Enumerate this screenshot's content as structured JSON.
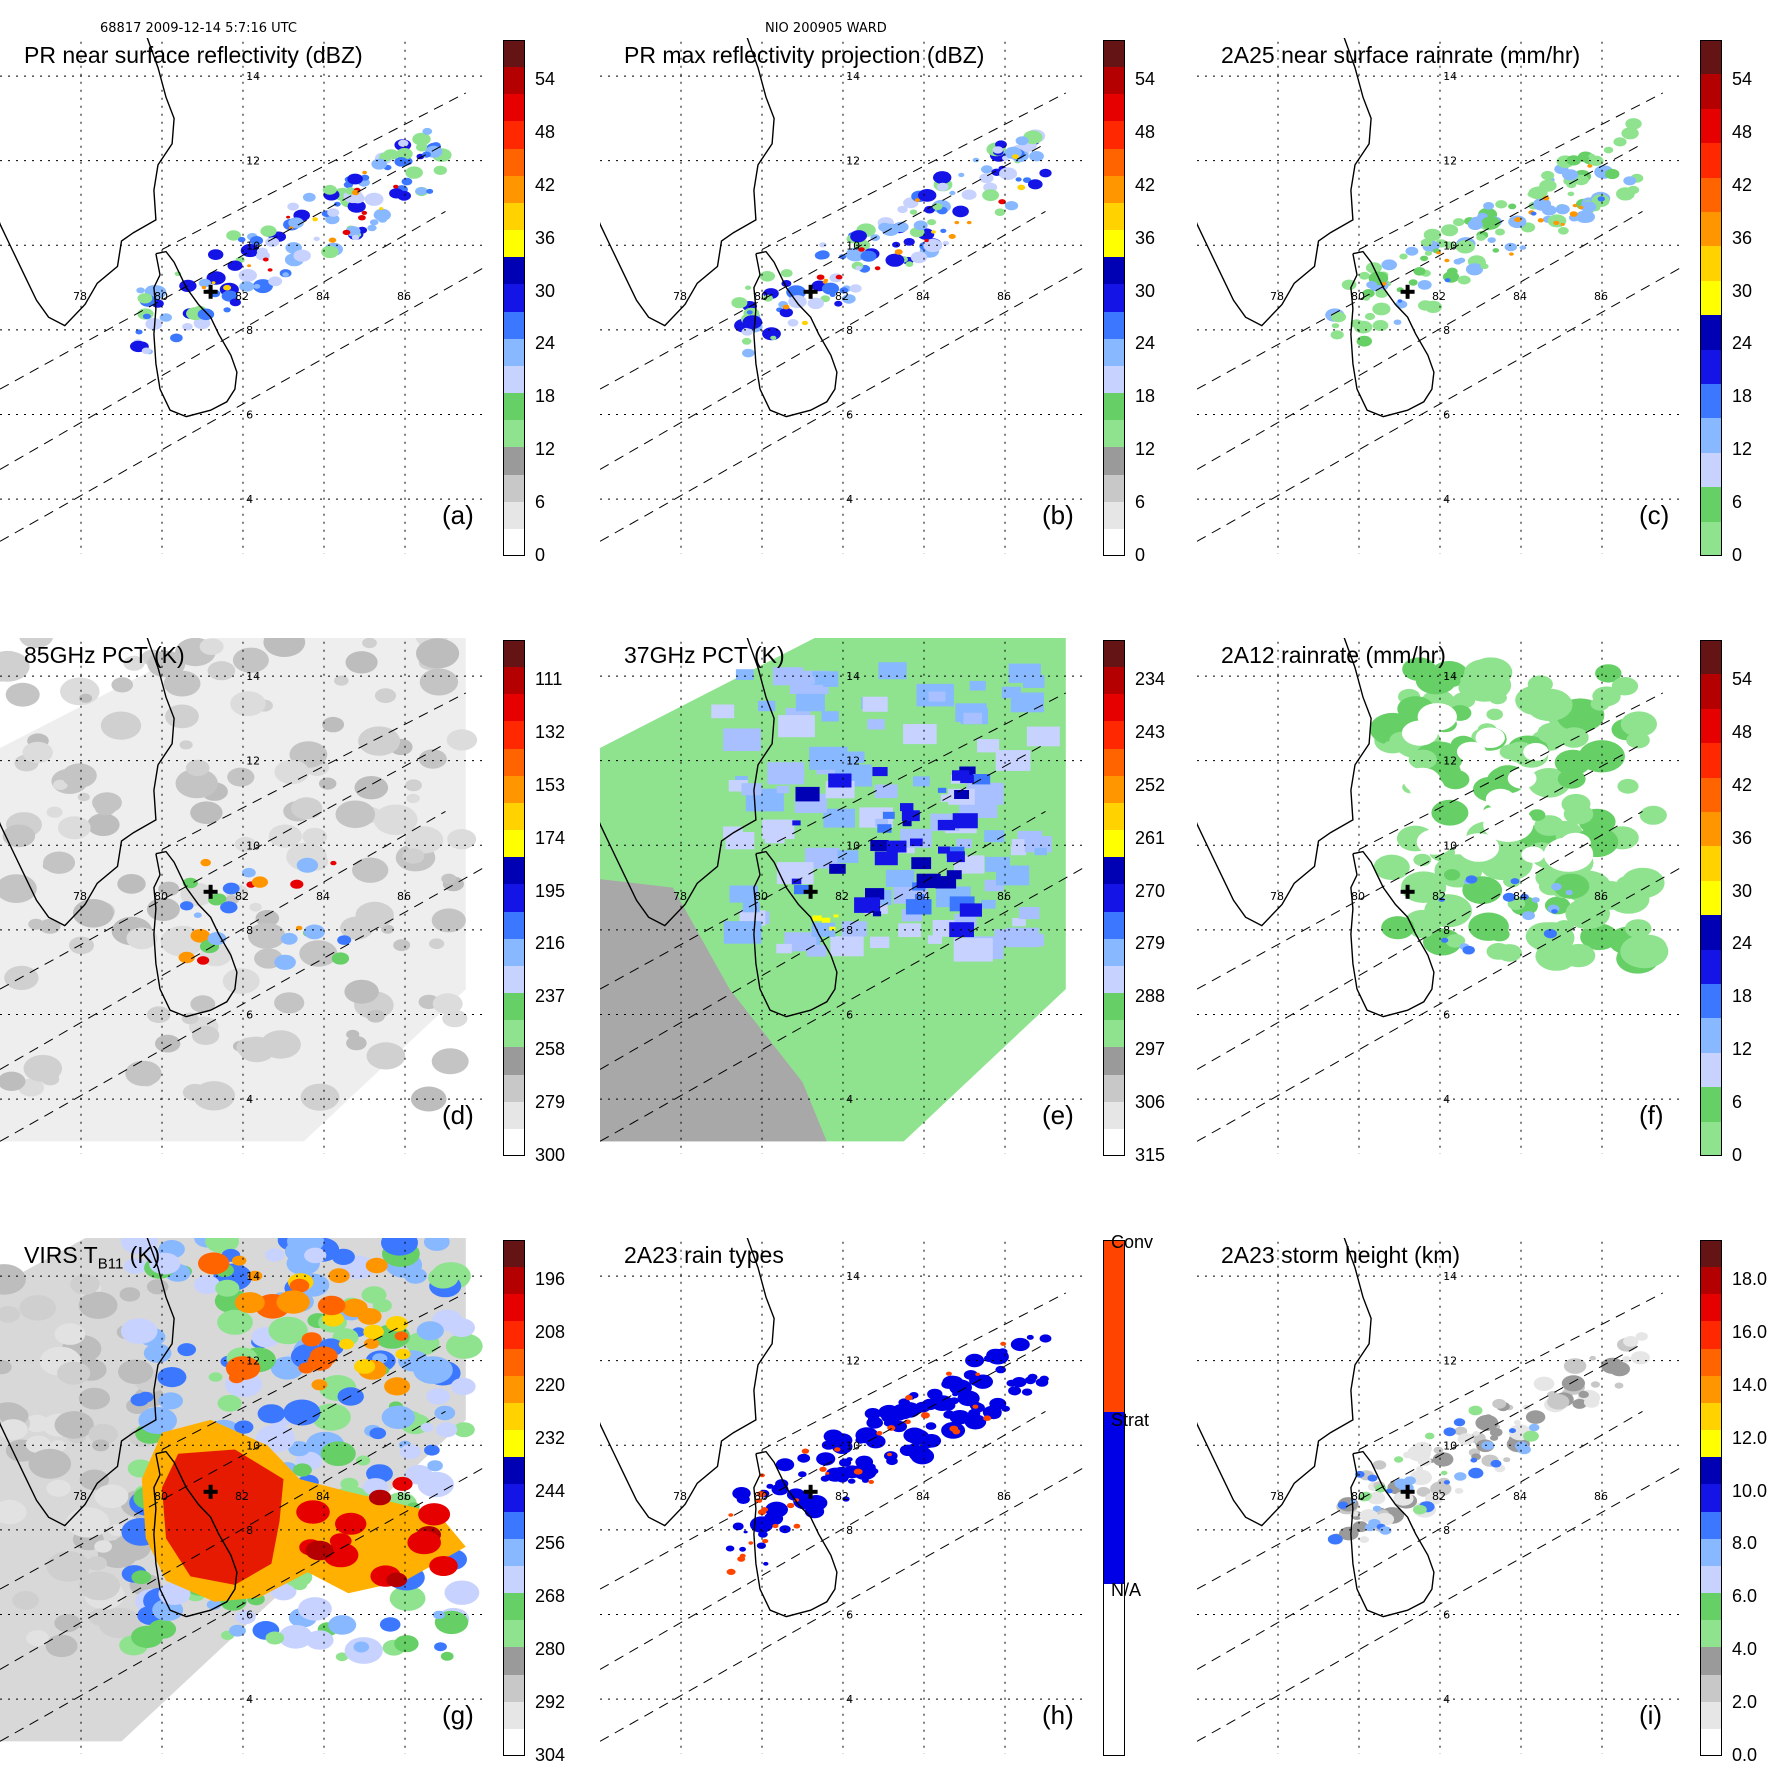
{
  "header": {
    "left": "68817 2009-12-14 5:7:16 UTC",
    "center": "NIO 200905 WARD"
  },
  "grid_labels": {
    "lon": [
      "78",
      "80",
      "82",
      "84",
      "86"
    ],
    "lat": [
      "4",
      "6",
      "8",
      "10",
      "12",
      "14"
    ]
  },
  "panels": [
    {
      "id": "a",
      "title": "PR near surface reflectivity (dBZ)",
      "label": "(a)",
      "scale": "dbz",
      "ticks": [
        "54",
        "48",
        "42",
        "36",
        "30",
        "24",
        "18",
        "12",
        "6",
        "0"
      ]
    },
    {
      "id": "b",
      "title": "PR max reflectivity projection (dBZ)",
      "label": "(b)",
      "scale": "dbz",
      "ticks": [
        "54",
        "48",
        "42",
        "36",
        "30",
        "24",
        "18",
        "12",
        "6",
        "0"
      ]
    },
    {
      "id": "c",
      "title": "2A25 near surface rainrate (mm/hr)",
      "label": "(c)",
      "scale": "rain",
      "ticks": [
        "54",
        "48",
        "42",
        "36",
        "30",
        "24",
        "18",
        "12",
        "6",
        "0"
      ]
    },
    {
      "id": "d",
      "title": "85GHz PCT (K)",
      "label": "(d)",
      "scale": "pct",
      "ticks": [
        "111",
        "132",
        "153",
        "174",
        "195",
        "216",
        "237",
        "258",
        "279",
        "300"
      ]
    },
    {
      "id": "e",
      "title": "37GHz PCT (K)",
      "label": "(e)",
      "scale": "pct",
      "ticks": [
        "234",
        "243",
        "252",
        "261",
        "270",
        "279",
        "288",
        "297",
        "306",
        "315"
      ]
    },
    {
      "id": "f",
      "title": "2A12 rainrate (mm/hr)",
      "label": "(f)",
      "scale": "rain",
      "ticks": [
        "54",
        "48",
        "42",
        "36",
        "30",
        "24",
        "18",
        "12",
        "6",
        "0"
      ]
    },
    {
      "id": "g",
      "title": "VIRS T",
      "title_sub": "B11",
      "title_suffix": " (K)",
      "label": "(g)",
      "scale": "pct",
      "ticks": [
        "196",
        "208",
        "220",
        "232",
        "244",
        "256",
        "268",
        "280",
        "292",
        "304"
      ]
    },
    {
      "id": "h",
      "title": "2A23 rain types",
      "label": "(h)",
      "scale": "type",
      "ticks": [
        "Conv",
        "Strat",
        "N/A"
      ]
    },
    {
      "id": "i",
      "title": "2A23 storm height (km)",
      "label": "(i)",
      "scale": "height",
      "ticks": [
        "18.0",
        "16.0",
        "14.0",
        "12.0",
        "10.0",
        "8.0",
        "6.0",
        "4.0",
        "2.0",
        "0.0"
      ]
    }
  ],
  "colors": {
    "dbz": [
      "#ffffff",
      "#e6e6e6",
      "#c8c8c8",
      "#9a9a9a",
      "#8fe38f",
      "#66d066",
      "#c8d2ff",
      "#88b8ff",
      "#3c78ff",
      "#1414e6",
      "#0000b4",
      "#ffff00",
      "#ffd200",
      "#ff9600",
      "#ff6400",
      "#ff2800",
      "#e60000",
      "#b40000",
      "#641414"
    ],
    "rain": [
      "#8fe38f",
      "#66d066",
      "#c8d2ff",
      "#88b8ff",
      "#3c78ff",
      "#1414e6",
      "#0000b4",
      "#ffff00",
      "#ffd200",
      "#ff9600",
      "#ff6400",
      "#ff2800",
      "#e60000",
      "#b40000",
      "#641414"
    ],
    "pct": [
      "#ffffff",
      "#e6e6e6",
      "#c8c8c8",
      "#9a9a9a",
      "#8fe38f",
      "#66d066",
      "#c8d2ff",
      "#88b8ff",
      "#3c78ff",
      "#1414e6",
      "#0000b4",
      "#ffff00",
      "#ffd200",
      "#ff9600",
      "#ff6400",
      "#ff2800",
      "#e60000",
      "#b40000",
      "#641414"
    ],
    "type": [
      "#ffffff",
      "#0000e6",
      "#ff4400"
    ],
    "height": [
      "#ffffff",
      "#e6e6e6",
      "#c8c8c8",
      "#9a9a9a",
      "#8fe38f",
      "#66d066",
      "#c8d2ff",
      "#88b8ff",
      "#3c78ff",
      "#1414e6",
      "#0000b4",
      "#ffff00",
      "#ffd200",
      "#ff9600",
      "#ff6400",
      "#ff2800",
      "#e60000",
      "#b40000",
      "#641414"
    ],
    "coast": "#000000",
    "grid": "#000000"
  }
}
